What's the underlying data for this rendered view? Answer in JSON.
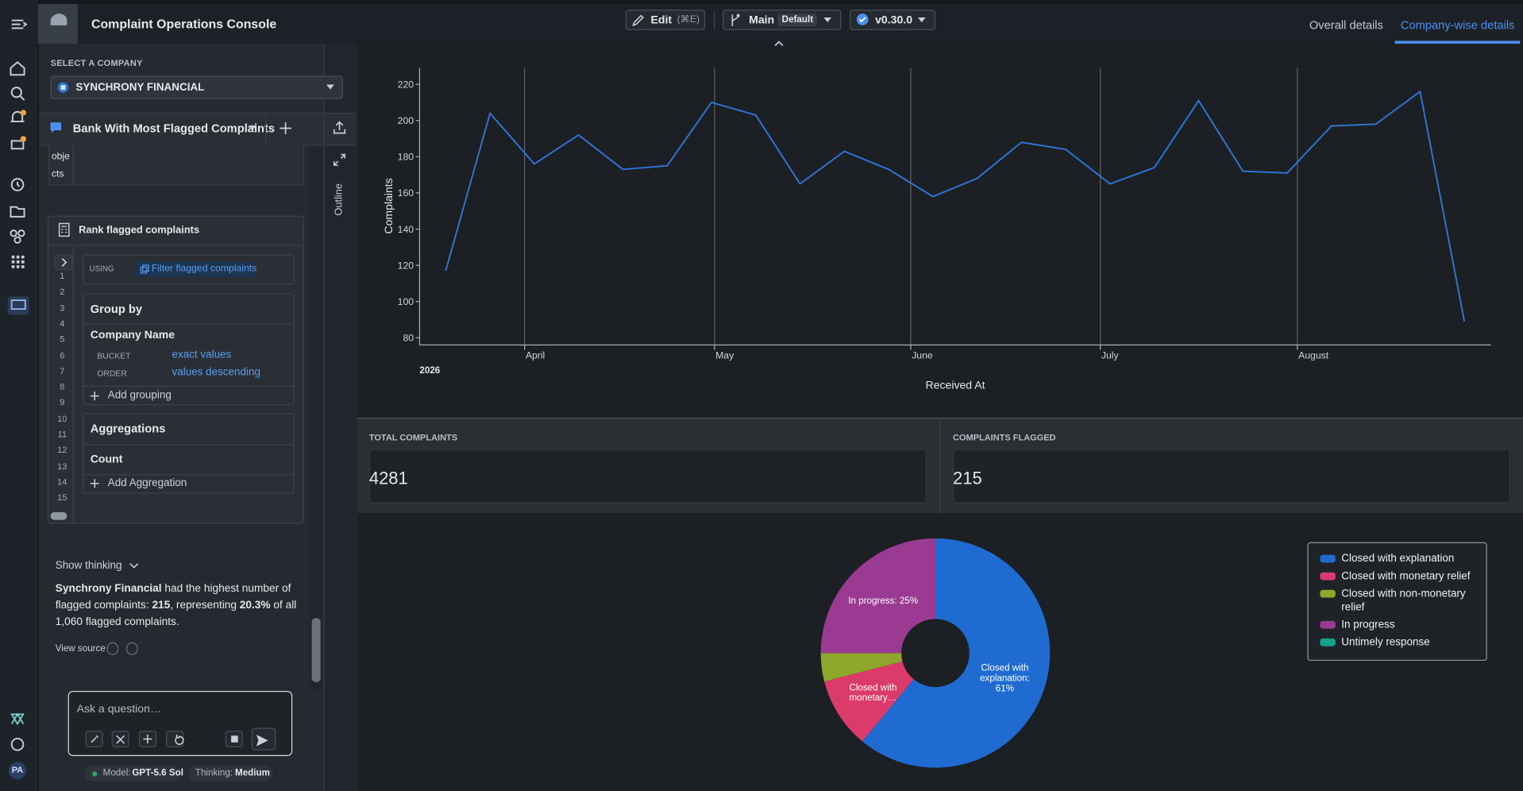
{
  "header": {
    "app_title": "Complaint Operations Console",
    "edit": "Edit",
    "edit_shortcut": "(⌘E)",
    "branch": "Main",
    "branch_tag": "Default",
    "version": "v0.30.0",
    "tabs": [
      "Overall details",
      "Company-wise details"
    ],
    "active_tab": 1
  },
  "rail": {
    "avatar": "PA"
  },
  "left": {
    "select_label": "SELECT A COMPANY",
    "company": "SYNCHRONY FINANCIAL",
    "thread_title": "Bank With Most Flagged Complaints",
    "prev_block_text": [
      "obje",
      "cts"
    ],
    "block": {
      "title": "Rank flagged complaints",
      "using_label": "USING",
      "using_value": "Filter flagged complaints",
      "group_by": "Group by",
      "field": "Company Name",
      "bucket_label": "BUCKET",
      "bucket_value": "exact values",
      "order_label": "ORDER",
      "order_value": "values descending",
      "add_grouping": "Add grouping",
      "aggregations": "Aggregations",
      "count": "Count",
      "add_aggregation": "Add Aggregation",
      "line_numbers": [
        1,
        2,
        3,
        4,
        5,
        6,
        7,
        8,
        9,
        10,
        11,
        12,
        13,
        14,
        15
      ]
    },
    "show_thinking": "Show thinking",
    "answer": [
      {
        "text": "Synchrony Financial",
        "bold": true
      },
      {
        "text": " had the highest number of flagged complaints: "
      },
      {
        "text": "215",
        "bold": true
      },
      {
        "text": ", representing "
      },
      {
        "text": "20.3%",
        "bold": true
      },
      {
        "text": " of all 1,060 flagged complaints."
      }
    ],
    "view_source": "View source",
    "input_placeholder": "Ask a question…",
    "model_label": "Model:",
    "model": "GPT-5.6 Sol",
    "thinking_label": "Thinking:",
    "thinking": "Medium"
  },
  "outline": "Outline",
  "chart_data": [
    {
      "type": "line",
      "y_label": "Complaints",
      "x_label": "Received At",
      "x_year_label": "2026",
      "values": [
        117,
        204,
        176,
        192,
        173,
        175,
        210,
        203,
        165,
        183,
        173,
        158,
        168,
        188,
        184,
        165,
        174,
        211,
        172,
        171,
        197,
        198,
        216,
        89
      ],
      "color": "#2f74d6",
      "ylim": [
        76,
        229
      ],
      "yticks": [
        80,
        100,
        120,
        140,
        160,
        180,
        200,
        220
      ],
      "xlim": [
        -0.59,
        23.6
      ],
      "xticks": [
        {
          "value": 1.78,
          "label": "April"
        },
        {
          "value": 6.07,
          "label": "May"
        },
        {
          "value": 10.5,
          "label": "June"
        },
        {
          "value": 14.78,
          "label": "July"
        },
        {
          "value": 19.23,
          "label": "August"
        }
      ],
      "grid": "x"
    },
    {
      "type": "pie",
      "donut": true,
      "categories": [
        "Closed with explanation",
        "Closed with monetary relief",
        "Closed with non-monetary relief",
        "In progress",
        "Untimely response"
      ],
      "values": [
        61,
        10,
        4,
        25,
        0
      ],
      "value_labels": [
        "Closed with explanation: 61%",
        "Closed with monetary…",
        null,
        "In progress: 25%",
        null
      ],
      "colors": [
        "#1f6bd1",
        "#db3b6b",
        "#8ea62b",
        "#9b3a92",
        "#13a08d"
      ],
      "legend": "top-right"
    }
  ],
  "kpis": [
    {
      "label": "TOTAL COMPLAINTS",
      "value": 4281
    },
    {
      "label": "COMPLAINTS FLAGGED",
      "value": 215
    }
  ]
}
